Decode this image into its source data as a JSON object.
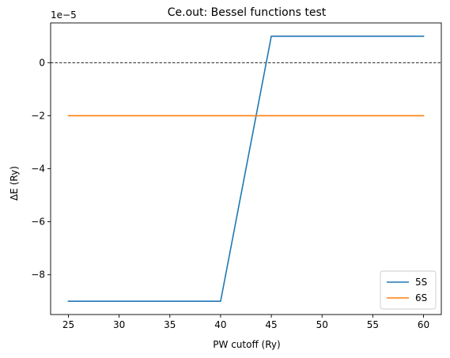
{
  "chart_data": {
    "type": "line",
    "title": "Ce.out: Bessel functions test",
    "xlabel": "PW cutoff (Ry)",
    "ylabel": "ΔE (Ry)",
    "y_offset_label": "1e−5",
    "x": [
      25,
      30,
      35,
      40,
      45,
      50,
      55,
      60
    ],
    "xlim": [
      23.25,
      61.75
    ],
    "ylim": [
      -9.5,
      1.5
    ],
    "y_scale_factor": "1e-5",
    "x_ticks": [
      25,
      30,
      35,
      40,
      45,
      50,
      55,
      60
    ],
    "x_tick_labels": [
      "25",
      "30",
      "35",
      "40",
      "45",
      "50",
      "55",
      "60"
    ],
    "y_ticks": [
      -8,
      -6,
      -4,
      -2,
      0
    ],
    "y_tick_labels": [
      "−8",
      "−6",
      "−4",
      "−2",
      "0"
    ],
    "reference_line": {
      "y": 0,
      "style": "dashed",
      "color": "#000000"
    },
    "legend_position": "lower-right",
    "grid": false,
    "series": [
      {
        "name": "5S",
        "color": "#1f77b4",
        "values": [
          -9,
          -9,
          -9,
          -9,
          1,
          1,
          1,
          1
        ]
      },
      {
        "name": "6S",
        "color": "#ff7f0e",
        "values": [
          -2,
          -2,
          -2,
          -2,
          -2,
          -2,
          -2,
          -2
        ]
      }
    ]
  }
}
